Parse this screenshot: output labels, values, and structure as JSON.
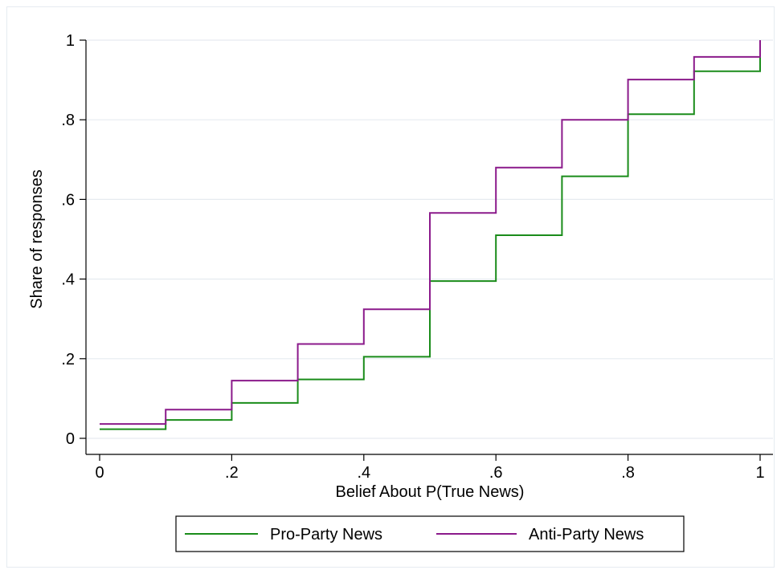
{
  "chart_data": {
    "type": "line",
    "step": true,
    "xlabel": "Belief About P(True News)",
    "ylabel": "Share of responses",
    "xlim": [
      0,
      1
    ],
    "ylim": [
      0,
      1
    ],
    "xticks": [
      0,
      0.2,
      0.4,
      0.6,
      0.8,
      1
    ],
    "xtick_labels": [
      "0",
      ".2",
      ".4",
      ".6",
      ".8",
      "1"
    ],
    "yticks": [
      0,
      0.2,
      0.4,
      0.6,
      0.8,
      1
    ],
    "ytick_labels": [
      "0",
      ".2",
      ".4",
      ".6",
      ".8",
      "1"
    ],
    "grid": "horizontal",
    "legend": "bottom",
    "x": [
      0,
      0.1,
      0.2,
      0.3,
      0.4,
      0.5,
      0.6,
      0.7,
      0.8,
      0.9,
      1.0
    ],
    "series": [
      {
        "name": "Pro-Party News",
        "color": "#1a8c1a",
        "values": [
          0.023,
          0.046,
          0.089,
          0.148,
          0.205,
          0.395,
          0.51,
          0.658,
          0.814,
          0.922,
          1.0
        ]
      },
      {
        "name": "Anti-Party News",
        "color": "#8b1a8b",
        "values": [
          0.036,
          0.072,
          0.145,
          0.237,
          0.324,
          0.566,
          0.68,
          0.8,
          0.901,
          0.958,
          1.0
        ]
      }
    ]
  }
}
